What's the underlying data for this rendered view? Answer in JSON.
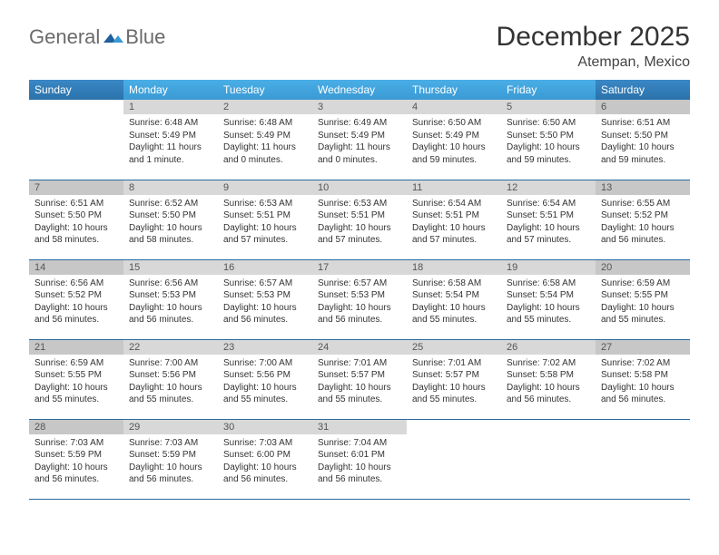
{
  "brand": {
    "word1": "General",
    "word2": "Blue"
  },
  "title": "December 2025",
  "location": "Atempan, Mexico",
  "header_colors": {
    "weekday_bg": "#3ea7dd",
    "weekend_bg": "#2e7cb8",
    "text": "#ffffff",
    "row_border": "#2a6aa0",
    "daynum_bg": "#d8d8d8",
    "daynum_weekend_bg": "#c7c7c7"
  },
  "weekdays": [
    "Sunday",
    "Monday",
    "Tuesday",
    "Wednesday",
    "Thursday",
    "Friday",
    "Saturday"
  ],
  "start_offset": 1,
  "days": [
    {
      "n": 1,
      "sr": "6:48 AM",
      "ss": "5:49 PM",
      "dl": "11 hours and 1 minute."
    },
    {
      "n": 2,
      "sr": "6:48 AM",
      "ss": "5:49 PM",
      "dl": "11 hours and 0 minutes."
    },
    {
      "n": 3,
      "sr": "6:49 AM",
      "ss": "5:49 PM",
      "dl": "11 hours and 0 minutes."
    },
    {
      "n": 4,
      "sr": "6:50 AM",
      "ss": "5:49 PM",
      "dl": "10 hours and 59 minutes."
    },
    {
      "n": 5,
      "sr": "6:50 AM",
      "ss": "5:50 PM",
      "dl": "10 hours and 59 minutes."
    },
    {
      "n": 6,
      "sr": "6:51 AM",
      "ss": "5:50 PM",
      "dl": "10 hours and 59 minutes."
    },
    {
      "n": 7,
      "sr": "6:51 AM",
      "ss": "5:50 PM",
      "dl": "10 hours and 58 minutes."
    },
    {
      "n": 8,
      "sr": "6:52 AM",
      "ss": "5:50 PM",
      "dl": "10 hours and 58 minutes."
    },
    {
      "n": 9,
      "sr": "6:53 AM",
      "ss": "5:51 PM",
      "dl": "10 hours and 57 minutes."
    },
    {
      "n": 10,
      "sr": "6:53 AM",
      "ss": "5:51 PM",
      "dl": "10 hours and 57 minutes."
    },
    {
      "n": 11,
      "sr": "6:54 AM",
      "ss": "5:51 PM",
      "dl": "10 hours and 57 minutes."
    },
    {
      "n": 12,
      "sr": "6:54 AM",
      "ss": "5:51 PM",
      "dl": "10 hours and 57 minutes."
    },
    {
      "n": 13,
      "sr": "6:55 AM",
      "ss": "5:52 PM",
      "dl": "10 hours and 56 minutes."
    },
    {
      "n": 14,
      "sr": "6:56 AM",
      "ss": "5:52 PM",
      "dl": "10 hours and 56 minutes."
    },
    {
      "n": 15,
      "sr": "6:56 AM",
      "ss": "5:53 PM",
      "dl": "10 hours and 56 minutes."
    },
    {
      "n": 16,
      "sr": "6:57 AM",
      "ss": "5:53 PM",
      "dl": "10 hours and 56 minutes."
    },
    {
      "n": 17,
      "sr": "6:57 AM",
      "ss": "5:53 PM",
      "dl": "10 hours and 56 minutes."
    },
    {
      "n": 18,
      "sr": "6:58 AM",
      "ss": "5:54 PM",
      "dl": "10 hours and 55 minutes."
    },
    {
      "n": 19,
      "sr": "6:58 AM",
      "ss": "5:54 PM",
      "dl": "10 hours and 55 minutes."
    },
    {
      "n": 20,
      "sr": "6:59 AM",
      "ss": "5:55 PM",
      "dl": "10 hours and 55 minutes."
    },
    {
      "n": 21,
      "sr": "6:59 AM",
      "ss": "5:55 PM",
      "dl": "10 hours and 55 minutes."
    },
    {
      "n": 22,
      "sr": "7:00 AM",
      "ss": "5:56 PM",
      "dl": "10 hours and 55 minutes."
    },
    {
      "n": 23,
      "sr": "7:00 AM",
      "ss": "5:56 PM",
      "dl": "10 hours and 55 minutes."
    },
    {
      "n": 24,
      "sr": "7:01 AM",
      "ss": "5:57 PM",
      "dl": "10 hours and 55 minutes."
    },
    {
      "n": 25,
      "sr": "7:01 AM",
      "ss": "5:57 PM",
      "dl": "10 hours and 55 minutes."
    },
    {
      "n": 26,
      "sr": "7:02 AM",
      "ss": "5:58 PM",
      "dl": "10 hours and 56 minutes."
    },
    {
      "n": 27,
      "sr": "7:02 AM",
      "ss": "5:58 PM",
      "dl": "10 hours and 56 minutes."
    },
    {
      "n": 28,
      "sr": "7:03 AM",
      "ss": "5:59 PM",
      "dl": "10 hours and 56 minutes."
    },
    {
      "n": 29,
      "sr": "7:03 AM",
      "ss": "5:59 PM",
      "dl": "10 hours and 56 minutes."
    },
    {
      "n": 30,
      "sr": "7:03 AM",
      "ss": "6:00 PM",
      "dl": "10 hours and 56 minutes."
    },
    {
      "n": 31,
      "sr": "7:04 AM",
      "ss": "6:01 PM",
      "dl": "10 hours and 56 minutes."
    }
  ],
  "labels": {
    "sunrise": "Sunrise:",
    "sunset": "Sunset:",
    "daylight": "Daylight:"
  }
}
